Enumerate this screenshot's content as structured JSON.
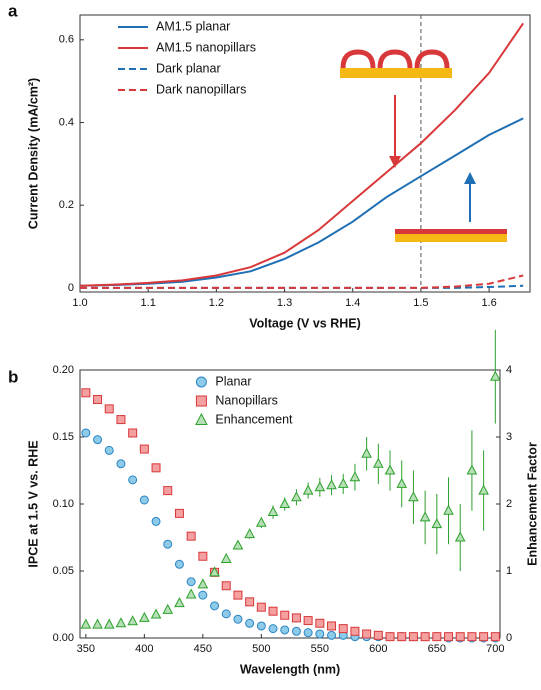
{
  "chart_data": [
    {
      "type": "line",
      "panel_label": "a",
      "xlabel": "Voltage (V vs RHE)",
      "ylabel": "Current Density (mA/cm²)",
      "x": [
        1.0,
        1.05,
        1.1,
        1.15,
        1.2,
        1.25,
        1.3,
        1.35,
        1.4,
        1.45,
        1.5,
        1.55,
        1.6,
        1.65
      ],
      "series": [
        {
          "name": "AM1.5 planar",
          "color": "#1f6fb4",
          "dash": false,
          "values": [
            0.005,
            0.007,
            0.01,
            0.015,
            0.025,
            0.04,
            0.07,
            0.11,
            0.16,
            0.22,
            0.27,
            0.32,
            0.37,
            0.41
          ]
        },
        {
          "name": "AM1.5 nanopillars",
          "color": "#d8383a",
          "dash": false,
          "values": [
            0.005,
            0.008,
            0.012,
            0.018,
            0.03,
            0.05,
            0.085,
            0.14,
            0.21,
            0.28,
            0.35,
            0.43,
            0.52,
            0.64
          ]
        },
        {
          "name": "Dark planar",
          "color": "#1f6fb4",
          "dash": true,
          "values": [
            0,
            0,
            0,
            0,
            0,
            0,
            0,
            0,
            0,
            0,
            0,
            0,
            0.002,
            0.005
          ]
        },
        {
          "name": "Dark nanopillars",
          "color": "#d8383a",
          "dash": true,
          "values": [
            0,
            0,
            0,
            0,
            0,
            0,
            0,
            0,
            0,
            0,
            0,
            0.003,
            0.01,
            0.03
          ]
        }
      ],
      "xlim": [
        1.0,
        1.66
      ],
      "xticks": [
        {
          "value": 1.0,
          "label": "1.0"
        },
        1.1,
        1.2,
        1.3,
        1.4,
        1.5,
        1.6
      ],
      "ylim": [
        -0.01,
        0.66
      ],
      "yticks": [
        0,
        0.2,
        0.4,
        0.6
      ],
      "vline": 1.5,
      "legend": "upper left",
      "grid": false
    },
    {
      "type": "scatter",
      "panel_label": "b",
      "xlabel": "Wavelength (nm)",
      "ylabel": "IPCE at 1.5 V vs. RHE",
      "y2label": "Enhancement Factor",
      "x": [
        350,
        360,
        370,
        380,
        390,
        400,
        410,
        420,
        430,
        440,
        450,
        460,
        470,
        480,
        490,
        500,
        510,
        520,
        530,
        540,
        550,
        560,
        570,
        580,
        590,
        600,
        610,
        620,
        630,
        640,
        650,
        660,
        670,
        680,
        690,
        700
      ],
      "series": [
        {
          "name": "Planar",
          "marker": "circle",
          "color": "#2a84c4",
          "fill": "#8ecbe8",
          "values": [
            0.153,
            0.148,
            0.14,
            0.13,
            0.118,
            0.103,
            0.087,
            0.07,
            0.055,
            0.042,
            0.032,
            0.024,
            0.018,
            0.014,
            0.011,
            0.009,
            0.007,
            0.006,
            0.005,
            0.004,
            0.003,
            0.002,
            0.002,
            0.001,
            0.001,
            0.001,
            0.001,
            0.001,
            0.001,
            0.001,
            0.001,
            0,
            0,
            0,
            0,
            0
          ]
        },
        {
          "name": "Nanopillars",
          "marker": "square",
          "color": "#d8383a",
          "fill": "#f4a0a0",
          "values": [
            0.183,
            0.178,
            0.171,
            0.163,
            0.153,
            0.141,
            0.127,
            0.11,
            0.093,
            0.076,
            0.061,
            0.049,
            0.039,
            0.032,
            0.027,
            0.023,
            0.02,
            0.017,
            0.015,
            0.013,
            0.011,
            0.009,
            0.007,
            0.005,
            0.003,
            0.002,
            0.001,
            0.001,
            0.001,
            0.001,
            0.001,
            0.001,
            0.001,
            0.001,
            0.001,
            0.001
          ]
        },
        {
          "name": "Enhancement",
          "marker": "triangle",
          "axis": "y2",
          "color": "#2ca02c",
          "fill": "#b8e0b8",
          "values": [
            0.2,
            0.2,
            0.2,
            0.22,
            0.25,
            0.3,
            0.35,
            0.42,
            0.52,
            0.65,
            0.8,
            0.98,
            1.18,
            1.38,
            1.55,
            1.72,
            1.88,
            2.0,
            2.1,
            2.2,
            2.25,
            2.28,
            2.3,
            2.4,
            2.75,
            2.6,
            2.5,
            2.3,
            2.1,
            1.8,
            1.7,
            1.9,
            1.5,
            2.5,
            2.2,
            3.9
          ],
          "errors": [
            0.02,
            0.02,
            0.02,
            0.02,
            0.02,
            0.02,
            0.03,
            0.03,
            0.03,
            0.04,
            0.04,
            0.05,
            0.05,
            0.06,
            0.07,
            0.08,
            0.1,
            0.1,
            0.12,
            0.12,
            0.14,
            0.15,
            0.15,
            0.2,
            0.25,
            0.3,
            0.3,
            0.35,
            0.4,
            0.4,
            0.45,
            0.5,
            0.5,
            0.6,
            0.6,
            0.7
          ]
        }
      ],
      "xlim": [
        345,
        704
      ],
      "xticks": [
        350,
        400,
        450,
        500,
        550,
        600,
        650,
        700
      ],
      "ylim": [
        0,
        0.2
      ],
      "yticks": [
        {
          "value": 0,
          "label": "0.00"
        },
        0.05,
        {
          "value": 0.1,
          "label": "0.10"
        },
        0.15,
        {
          "value": 0.2,
          "label": "0.20"
        }
      ],
      "y2lim": [
        0,
        4
      ],
      "y2ticks": [
        0,
        1,
        2,
        3,
        4
      ],
      "legend": "upper center",
      "grid": false
    }
  ]
}
